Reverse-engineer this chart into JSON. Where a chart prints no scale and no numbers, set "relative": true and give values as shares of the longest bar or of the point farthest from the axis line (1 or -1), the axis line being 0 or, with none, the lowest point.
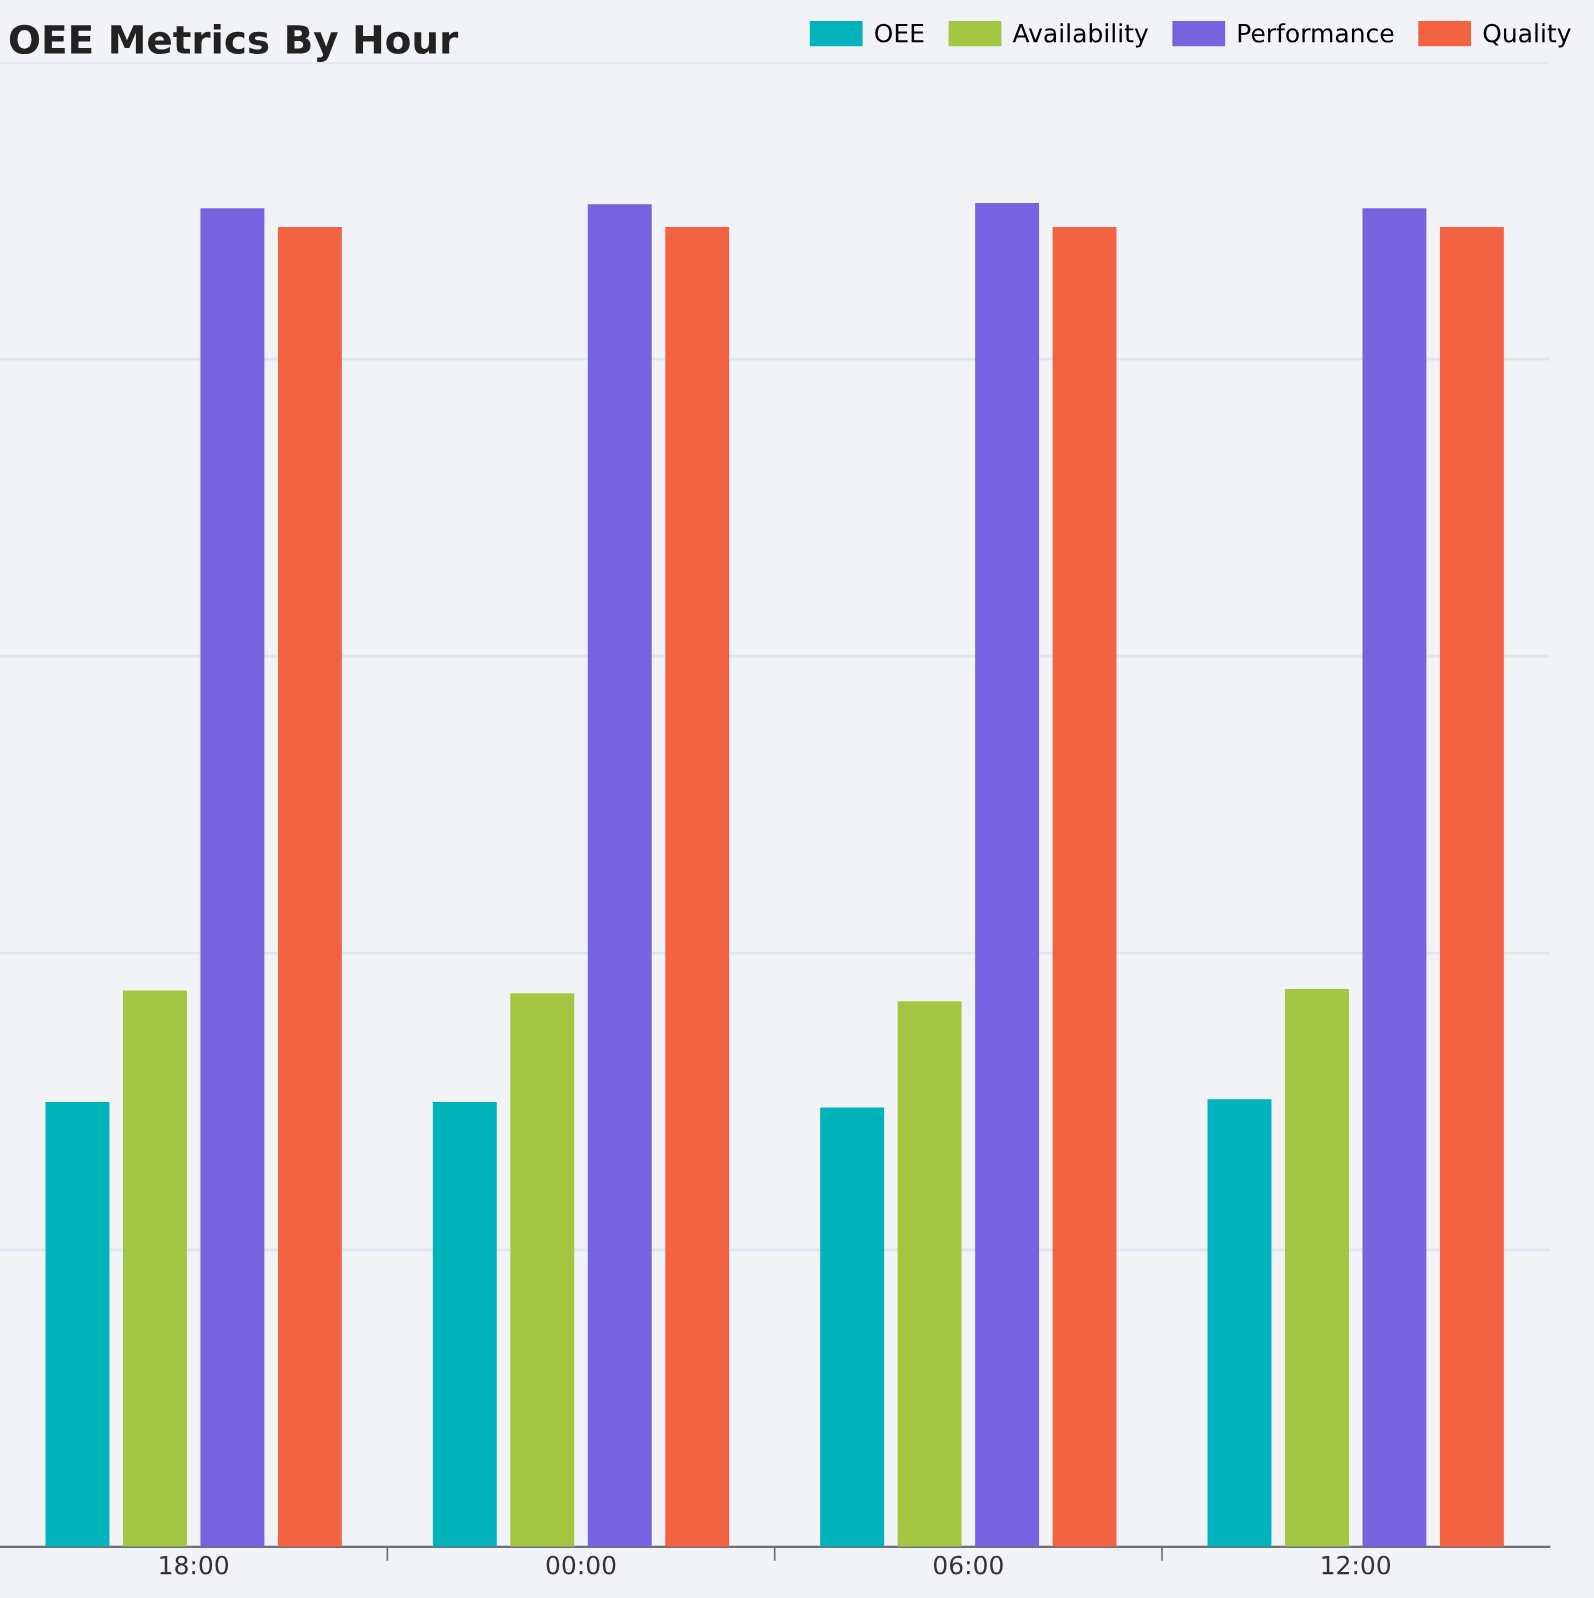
{
  "chart_data": {
    "type": "bar",
    "title": "OEE Metrics By Hour",
    "relative": true,
    "grid": "y",
    "legend": "top right",
    "categories": [
      "18:00",
      "00:00",
      "06:00",
      "12:00"
    ],
    "series": [
      {
        "name": "OEE",
        "color": "#00b3bb",
        "values": [
          0.331,
          0.331,
          0.327,
          0.333
        ]
      },
      {
        "name": "Availability",
        "color": "#a3c743",
        "values": [
          0.414,
          0.412,
          0.406,
          0.415
        ]
      },
      {
        "name": "Performance",
        "color": "#7763e0",
        "values": [
          0.996,
          0.999,
          1.0,
          0.996
        ]
      },
      {
        "name": "Quality",
        "color": "#f36342",
        "values": [
          0.982,
          0.982,
          0.982,
          0.982
        ]
      }
    ]
  }
}
